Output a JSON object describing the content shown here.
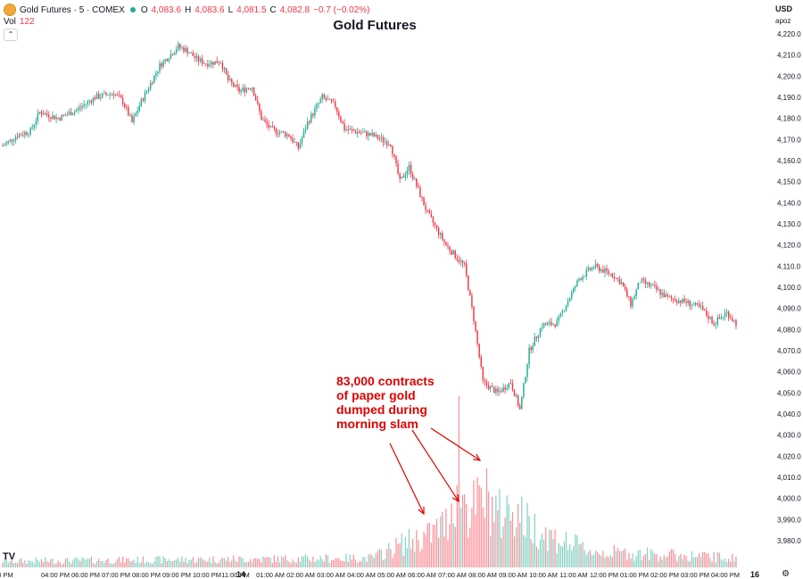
{
  "header": {
    "symbol_label": "Gold Futures · 5 · COMEX",
    "open_label": "O",
    "open": "4,083.6",
    "high_label": "H",
    "high": "4,083.6",
    "low_label": "L",
    "low": "4,081.5",
    "close_label": "C",
    "close": "4,082.8",
    "change": "−0.7 (−0.02%)",
    "vol_label": "Vol",
    "vol_value": "122"
  },
  "currency": "USD",
  "scale_mode": "apoz",
  "annotation": {
    "lines": [
      "83,000 contracts",
      "of paper gold",
      "dumped during",
      "morning slam"
    ]
  },
  "colors": {
    "up": "#22ab94",
    "down": "#f23645",
    "annotation": "#e00000"
  },
  "chart_data": {
    "type": "candlestick",
    "title": "Gold Futures",
    "ylim": [
      3975,
      4225
    ],
    "y_ticks": [
      "4,220.0",
      "4,210.0",
      "4,200.0",
      "4,190.0",
      "4,180.0",
      "4,170.0",
      "4,160.0",
      "4,150.0",
      "4,140.0",
      "4,130.0",
      "4,120.0",
      "4,110.0",
      "4,100.0",
      "4,090.0",
      "4,080.0",
      "4,070.0",
      "4,060.0",
      "4,050.0",
      "4,040.0",
      "4,030.0",
      "4,020.0",
      "4,010.0",
      "4,000.0",
      "3,990.0",
      "3,980.0"
    ],
    "x_ticks": [
      "0 PM",
      "04:00 PM",
      "06:00 PM",
      "07:00 PM",
      "08:00 PM",
      "09:00 PM",
      "10:00 PM",
      "11:00 PM",
      "14",
      "01:00 AM",
      "02:00 AM",
      "03:00 AM",
      "04:00 AM",
      "05:00 AM",
      "06:00 AM",
      "07:00 AM",
      "08:00 AM",
      "09:00 AM",
      "10:00 AM",
      "11:00 AM",
      "12:00 PM",
      "01:00 PM",
      "02:00 PM",
      "03:00 PM",
      "04:00 PM",
      "16"
    ],
    "price_path": [
      [
        0,
        4167
      ],
      [
        8,
        4172
      ],
      [
        15,
        4174
      ],
      [
        20,
        4183
      ],
      [
        30,
        4180
      ],
      [
        40,
        4184
      ],
      [
        50,
        4190
      ],
      [
        60,
        4192
      ],
      [
        65,
        4188
      ],
      [
        70,
        4178
      ],
      [
        75,
        4188
      ],
      [
        85,
        4205
      ],
      [
        95,
        4214
      ],
      [
        100,
        4212
      ],
      [
        105,
        4208
      ],
      [
        110,
        4206
      ],
      [
        118,
        4207
      ],
      [
        122,
        4198
      ],
      [
        128,
        4193
      ],
      [
        135,
        4195
      ],
      [
        140,
        4180
      ],
      [
        145,
        4175
      ],
      [
        155,
        4172
      ],
      [
        160,
        4166
      ],
      [
        165,
        4178
      ],
      [
        173,
        4190
      ],
      [
        180,
        4186
      ],
      [
        185,
        4175
      ],
      [
        200,
        4172
      ],
      [
        210,
        4168
      ],
      [
        215,
        4150
      ],
      [
        220,
        4157
      ],
      [
        230,
        4135
      ],
      [
        240,
        4120
      ],
      [
        250,
        4110
      ],
      [
        255,
        4085
      ],
      [
        260,
        4055
      ],
      [
        268,
        4050
      ],
      [
        275,
        4055
      ],
      [
        280,
        4042
      ],
      [
        285,
        4070
      ],
      [
        292,
        4082
      ],
      [
        300,
        4083
      ],
      [
        305,
        4092
      ],
      [
        312,
        4104
      ],
      [
        320,
        4110
      ],
      [
        330,
        4106
      ],
      [
        335,
        4102
      ],
      [
        340,
        4092
      ],
      [
        345,
        4103
      ],
      [
        352,
        4100
      ],
      [
        360,
        4095
      ],
      [
        370,
        4093
      ],
      [
        378,
        4090
      ],
      [
        385,
        4083
      ],
      [
        392,
        4088
      ],
      [
        398,
        4082
      ]
    ],
    "volume_profile": [
      [
        0,
        2
      ],
      [
        100,
        2.5
      ],
      [
        200,
        3
      ],
      [
        218,
        8
      ],
      [
        230,
        10
      ],
      [
        240,
        14
      ],
      [
        247,
        28
      ],
      [
        252,
        18
      ],
      [
        262,
        22
      ],
      [
        270,
        16
      ],
      [
        276,
        20
      ],
      [
        284,
        14
      ],
      [
        300,
        9
      ],
      [
        320,
        5
      ],
      [
        360,
        4
      ],
      [
        398,
        3
      ]
    ],
    "volume_axis_max": 48,
    "candle_count": 398,
    "annotation_text": "83,000 contracts of paper gold dumped during morning slam"
  }
}
